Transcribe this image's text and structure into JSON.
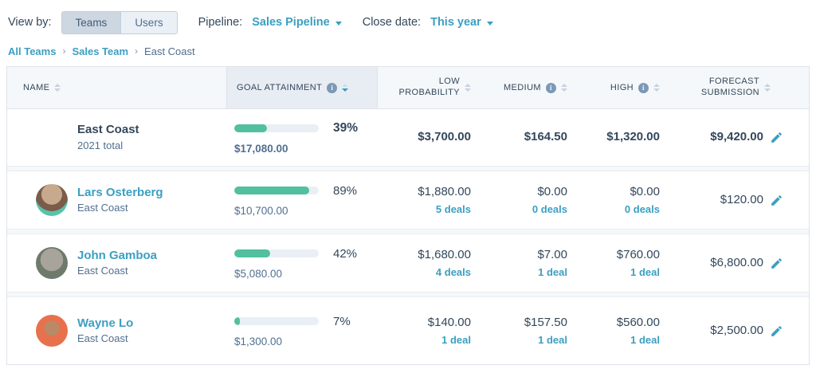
{
  "toolbar": {
    "view_by_label": "View by:",
    "teams_label": "Teams",
    "users_label": "Users",
    "pipeline_label": "Pipeline:",
    "pipeline_value": "Sales Pipeline",
    "close_date_label": "Close date:",
    "close_date_value": "This year"
  },
  "breadcrumb": {
    "all_teams": "All Teams",
    "sales_team": "Sales Team",
    "current": "East Coast",
    "separator": "›"
  },
  "table": {
    "headers": {
      "name": "NAME",
      "goal": "GOAL ATTAINMENT",
      "low_line1": "LOW",
      "low_line2": "PROBABILITY",
      "medium": "MEDIUM",
      "high": "HIGH",
      "forecast_line1": "FORECAST",
      "forecast_line2": "SUBMISSION",
      "info_glyph": "i"
    },
    "rows": [
      {
        "type": "team",
        "name": "East Coast",
        "subtitle": "2021 total",
        "goal_pct": 39,
        "goal_pct_label": "39%",
        "goal_amount": "$17,080.00",
        "low": "$3,700.00",
        "medium": "$164.50",
        "high": "$1,320.00",
        "forecast": "$9,420.00"
      },
      {
        "type": "user",
        "name": "Lars Osterberg",
        "subtitle": "East Coast",
        "goal_pct": 89,
        "goal_pct_label": "89%",
        "goal_amount": "$10,700.00",
        "low": "$1,880.00",
        "low_deals": "5 deals",
        "medium": "$0.00",
        "medium_deals": "0 deals",
        "high": "$0.00",
        "high_deals": "0 deals",
        "forecast": "$120.00"
      },
      {
        "type": "user",
        "name": "John Gamboa",
        "subtitle": "East Coast",
        "goal_pct": 42,
        "goal_pct_label": "42%",
        "goal_amount": "$5,080.00",
        "low": "$1,680.00",
        "low_deals": "4 deals",
        "medium": "$7.00",
        "medium_deals": "1 deal",
        "high": "$760.00",
        "high_deals": "1 deal",
        "forecast": "$6,800.00"
      },
      {
        "type": "user",
        "name": "Wayne Lo",
        "subtitle": "East Coast",
        "goal_pct": 7,
        "goal_pct_label": "7%",
        "goal_amount": "$1,300.00",
        "low": "$140.00",
        "low_deals": "1 deal",
        "medium": "$157.50",
        "medium_deals": "1 deal",
        "high": "$560.00",
        "high_deals": "1 deal",
        "forecast": "$2,500.00"
      }
    ]
  },
  "colors": {
    "accent_teal": "#3b9fc2",
    "progress_green": "#52bf9f",
    "dark_text": "#33475b",
    "secondary_text": "#516f90",
    "sorted_header_bg": "#e8edf4",
    "header_bg": "#f5f8fa"
  }
}
